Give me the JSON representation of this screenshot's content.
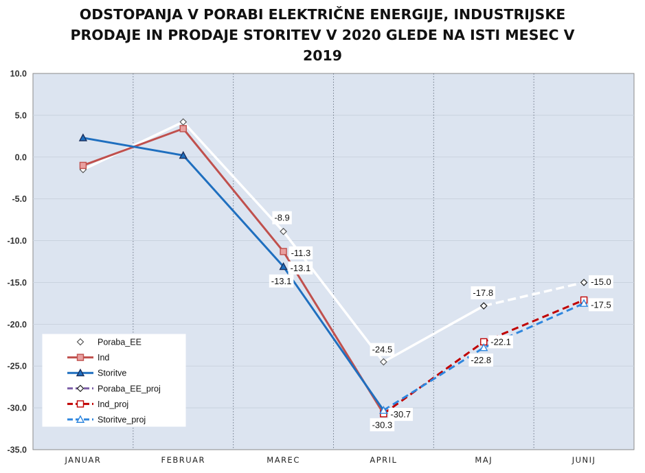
{
  "title_lines": [
    "ODSTOPANJA V PORABI ELEKTRIČNE ENERGIJE, INDUSTRIJSKE",
    "PRODAJE IN PRODAJE STORITEV V 2020 GLEDE NA ISTI MESEC V",
    "2019"
  ],
  "chart_data": {
    "type": "line",
    "title": "ODSTOPANJA V PORABI ELEKTRIČNE ENERGIJE, INDUSTRIJSKE PRODAJE IN PRODAJE STORITEV V 2020 GLEDE NA ISTI MESEC V 2019",
    "categories": [
      "JANUAR",
      "FEBRUAR",
      "MAREC",
      "APRIL",
      "MAJ",
      "JUNIJ"
    ],
    "ylim": [
      -35,
      10
    ],
    "yticks": [
      10,
      5,
      0,
      -5,
      -10,
      -15,
      -20,
      -25,
      -30,
      -35
    ],
    "ytick_labels": [
      "10.0",
      "5.0",
      "0.0",
      "-5.0",
      "-10.0",
      "-15.0",
      "-20.0",
      "-25.0",
      "-30.0",
      "-35.0"
    ],
    "xlabel": "",
    "ylabel": "",
    "grid": true,
    "legend_position": "bottom-left",
    "colors": {
      "plot_bg": "#dce4f0",
      "poraba_line": "#ffffff",
      "ind": "#c0504d",
      "ind_marker_fill": "#e8a0a0",
      "storitve": "#1f6fbf",
      "poraba_proj": "#7b5ea7",
      "ind_proj": "#c00000",
      "storitve_proj": "#2e86de"
    },
    "series": [
      {
        "name": "Poraba_EE",
        "values": [
          -1.5,
          4.2,
          -8.9,
          -24.5,
          -17.8,
          null
        ]
      },
      {
        "name": "Ind",
        "values": [
          -1.0,
          3.4,
          -11.3,
          -30.7,
          null,
          null
        ]
      },
      {
        "name": "Storitve",
        "values": [
          2.3,
          0.2,
          -13.1,
          -30.3,
          null,
          null
        ]
      },
      {
        "name": "Poraba_EE_proj",
        "values": [
          null,
          null,
          null,
          null,
          -17.8,
          -15.0
        ]
      },
      {
        "name": "Ind_proj",
        "values": [
          null,
          null,
          null,
          -30.7,
          -22.1,
          -17.1
        ]
      },
      {
        "name": "Storitve_proj",
        "values": [
          null,
          null,
          null,
          -30.3,
          -22.8,
          -17.5
        ]
      }
    ],
    "data_labels": [
      {
        "text": "-8.9"
      },
      {
        "text": "-11.3"
      },
      {
        "text": "-13.1"
      },
      {
        "text": "-13.1"
      },
      {
        "text": "-24.5"
      },
      {
        "text": "-30.7"
      },
      {
        "text": "-30.3"
      },
      {
        "text": "-17.8"
      },
      {
        "text": "-22.1"
      },
      {
        "text": "-22.8"
      },
      {
        "text": "-15.0"
      },
      {
        "text": "-17.5"
      }
    ],
    "legend": [
      "Poraba_EE",
      "Ind",
      "Storitve",
      "Poraba_EE_proj",
      "Ind_proj",
      "Storitve_proj"
    ]
  }
}
